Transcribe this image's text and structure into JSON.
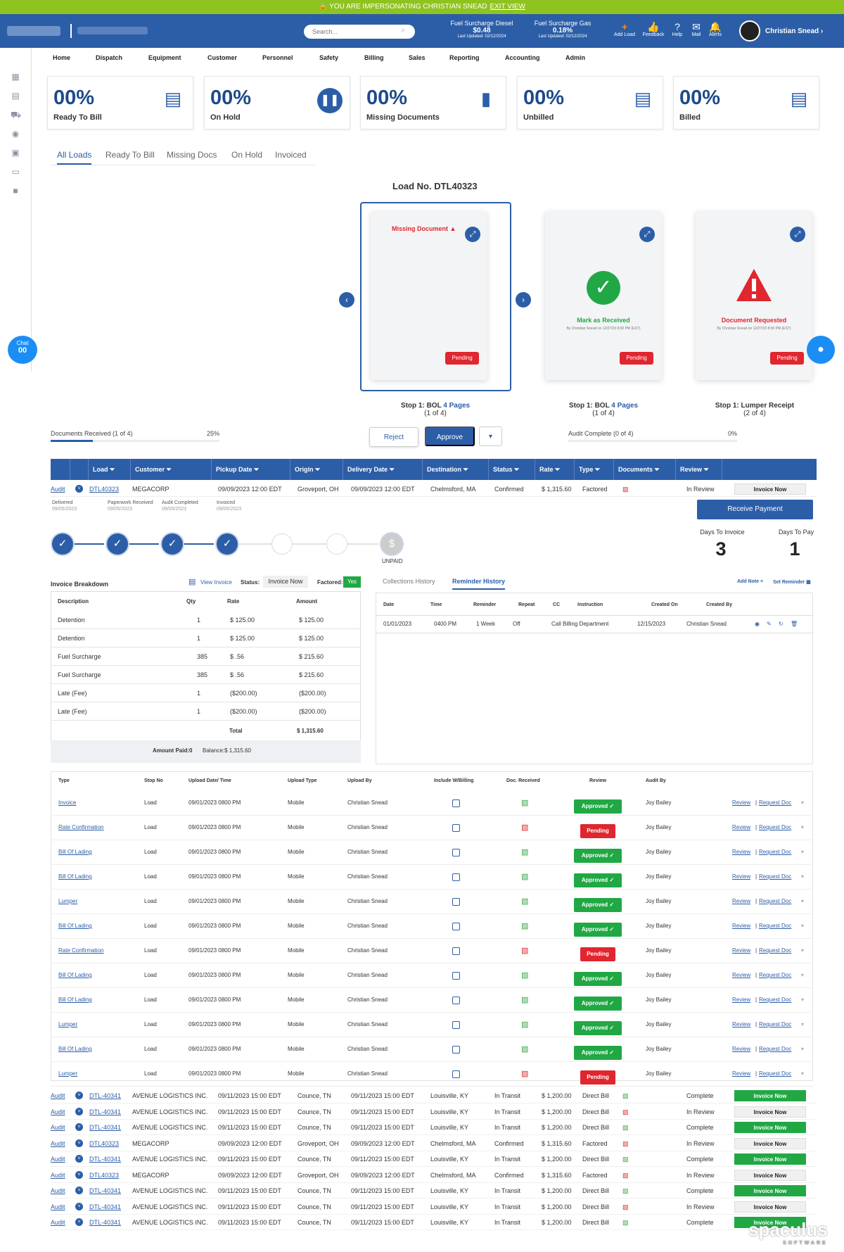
{
  "impersonation": {
    "text": "🔒 YOU ARE IMPERSONATING CHRISTIAN SNEAD",
    "exit": "EXIT VIEW"
  },
  "header": {
    "search_placeholder": "Search...",
    "fuel": [
      {
        "label": "Fuel Surcharge Diesel",
        "value": "$0.48",
        "updated": "Last Updated: 02/12/2024"
      },
      {
        "label": "Fuel Surcharge Gas",
        "value": "0.18%",
        "updated": "Last Updated: 02/12/2024"
      }
    ],
    "icons": [
      {
        "label": "Add Load",
        "icon": "+"
      },
      {
        "label": "Feedback",
        "icon": "👍"
      },
      {
        "label": "Help",
        "icon": "?"
      },
      {
        "label": "Mail",
        "icon": "✉"
      },
      {
        "label": "Alerts",
        "icon": "🔔"
      }
    ],
    "user": "Christian Snead ›"
  },
  "nav": [
    "Home",
    "Dispatch",
    "Equipment",
    "Customer",
    "Personnel",
    "Safety",
    "Billing",
    "Sales",
    "Reporting",
    "Accounting",
    "Admin"
  ],
  "kpis": [
    {
      "value": "00%",
      "label": "Ready To Bill"
    },
    {
      "value": "00%",
      "label": "On Hold"
    },
    {
      "value": "00%",
      "label": "Missing Documents"
    },
    {
      "value": "00%",
      "label": "Unbilled"
    },
    {
      "value": "00%",
      "label": "Billed"
    }
  ],
  "tabs": [
    "All Loads",
    "Ready To Bill",
    "Missing Docs",
    "On Hold",
    "Invoiced"
  ],
  "viewer": {
    "title": "Load No. DTL40323",
    "cards": [
      {
        "status_text": "Missing Document ▲",
        "badge": "Pending"
      },
      {
        "status_text": "Mark as Received",
        "sub": "By Christian Snead on 12/27/23 8:00 PM (EST)",
        "badge": "Pending"
      },
      {
        "status_text": "Document Requested",
        "sub": "By Christian Snead on 12/27/23 8:00 PM (EST)",
        "badge": "Pending"
      }
    ],
    "stops": [
      {
        "name": "Stop 1: BOL",
        "pages": "4 Pages",
        "count": "(1 of 4)"
      },
      {
        "name": "Stop 1: BOL",
        "pages": "4 Pages",
        "count": "(1 of 4)"
      },
      {
        "name": "Stop 1: Lumper Receipt",
        "pages": "",
        "count": "(2 of 4)"
      }
    ],
    "docs_received": {
      "label": "Documents Received (1 of 4)",
      "percent": "25%",
      "fraction": 0.25
    },
    "audit": {
      "label": "Audit Complete (0 of 4)",
      "percent": "0%",
      "fraction": 0
    },
    "reject": "Reject",
    "approve": "Approve",
    "dropdown": "▾"
  },
  "table": {
    "headers": [
      "Load",
      "Customer",
      "Pickup Date",
      "Origin",
      "Delivery Date",
      "Destination",
      "Status",
      "Rate",
      "Type",
      "Documents",
      "Review"
    ],
    "first_row": {
      "audit": "Audit",
      "load": "DTL40323",
      "customer": "MEGACORP",
      "pickup": "09/09/2023 12:00 EDT",
      "origin": "Groveport, OH",
      "delivery": "09/09/2023 12:00 EDT",
      "dest": "Chelmsford, MA",
      "status": "Confirmed",
      "rate": "$ 1,315.60",
      "type": "Factored",
      "review": "In Review",
      "action": "Invoice Now"
    },
    "milestones": [
      {
        "label": "Delivered",
        "date": "09/05/2023"
      },
      {
        "label": "Paperwork Received",
        "date": "09/05/2023"
      },
      {
        "label": "Audit Completed",
        "date": "09/05/2023"
      },
      {
        "label": "Invoiced",
        "date": "09/05/2023"
      }
    ],
    "receive_payment": "Receive Payment",
    "days_to_invoice": {
      "label": "Days To Invoice",
      "value": "3"
    },
    "days_to_pay": {
      "label": "Days To Pay",
      "value": "1"
    },
    "unpaid": "UNPAID",
    "rows": [
      {
        "load": "DTL-40341",
        "customer": "AVENUE LOGISTICS INC.",
        "pickup": "09/11/2023 15:00 EDT",
        "origin": "Counce, TN",
        "delivery": "09/11/2023 15:00 EDT",
        "dest": "Louisville, KY",
        "status": "In Transit",
        "rate": "$ 1,200.00",
        "type": "Direct Bill",
        "doc": "g",
        "review": "Complete",
        "action": "Invoice Now",
        "green": true
      },
      {
        "load": "DTL-40341",
        "customer": "AVENUE LOGISTICS INC.",
        "pickup": "09/11/2023 15:00 EDT",
        "origin": "Counce, TN",
        "delivery": "09/11/2023 15:00 EDT",
        "dest": "Louisville, KY",
        "status": "In Transit",
        "rate": "$ 1,200.00",
        "type": "Direct Bill",
        "doc": "r",
        "review": "In Review",
        "action": "Invoice Now",
        "green": false
      },
      {
        "load": "DTL-40341",
        "customer": "AVENUE LOGISTICS INC.",
        "pickup": "09/11/2023 15:00 EDT",
        "origin": "Counce, TN",
        "delivery": "09/11/2023 15:00 EDT",
        "dest": "Louisville, KY",
        "status": "In Transit",
        "rate": "$ 1,200.00",
        "type": "Direct Bill",
        "doc": "g",
        "review": "Complete",
        "action": "Invoice Now",
        "green": true
      },
      {
        "load": "DTL40323",
        "customer": "MEGACORP",
        "pickup": "09/09/2023 12:00 EDT",
        "origin": "Groveport, OH",
        "delivery": "09/09/2023 12:00 EDT",
        "dest": "Chelmsford, MA",
        "status": "Confirmed",
        "rate": "$ 1,315.60",
        "type": "Factored",
        "doc": "r",
        "review": "In Review",
        "action": "Invoice Now",
        "green": false
      },
      {
        "load": "DTL-40341",
        "customer": "AVENUE LOGISTICS INC.",
        "pickup": "09/11/2023 15:00 EDT",
        "origin": "Counce, TN",
        "delivery": "09/11/2023 15:00 EDT",
        "dest": "Louisville, KY",
        "status": "In Transit",
        "rate": "$ 1,200.00",
        "type": "Direct Bill",
        "doc": "g",
        "review": "Complete",
        "action": "Invoice Now",
        "green": true
      },
      {
        "load": "DTL40323",
        "customer": "MEGACORP",
        "pickup": "09/09/2023 12:00 EDT",
        "origin": "Groveport, OH",
        "delivery": "09/09/2023 12:00 EDT",
        "dest": "Chelmsford, MA",
        "status": "Confirmed",
        "rate": "$ 1,315.60",
        "type": "Factored",
        "doc": "r",
        "review": "In Review",
        "action": "Invoice Now",
        "green": false
      },
      {
        "load": "DTL-40341",
        "customer": "AVENUE LOGISTICS INC.",
        "pickup": "09/11/2023 15:00 EDT",
        "origin": "Counce, TN",
        "delivery": "09/11/2023 15:00 EDT",
        "dest": "Louisville, KY",
        "status": "In Transit",
        "rate": "$ 1,200.00",
        "type": "Direct Bill",
        "doc": "g",
        "review": "Complete",
        "action": "Invoice Now",
        "green": true
      },
      {
        "load": "DTL-40341",
        "customer": "AVENUE LOGISTICS INC.",
        "pickup": "09/11/2023 15:00 EDT",
        "origin": "Counce, TN",
        "delivery": "09/11/2023 15:00 EDT",
        "dest": "Louisville, KY",
        "status": "In Transit",
        "rate": "$ 1,200.00",
        "type": "Direct Bill",
        "doc": "r",
        "review": "In Review",
        "action": "Invoice Now",
        "green": false
      },
      {
        "load": "DTL-40341",
        "customer": "AVENUE LOGISTICS INC.",
        "pickup": "09/11/2023 15:00 EDT",
        "origin": "Counce, TN",
        "delivery": "09/11/2023 15:00 EDT",
        "dest": "Louisville, KY",
        "status": "In Transit",
        "rate": "$ 1,200.00",
        "type": "Direct Bill",
        "doc": "g",
        "review": "Complete",
        "action": "Invoice Now",
        "green": true
      }
    ]
  },
  "invoice": {
    "title": "Invoice Breakdown",
    "view": "View Invoice",
    "status_label": "Status:",
    "status_value": "Invoice Now",
    "factored_label": "Factored:",
    "factored_value": "Yes",
    "headers": [
      "Description",
      "Qty",
      "Rate",
      "Amount"
    ],
    "lines": [
      {
        "d": "Detention",
        "q": "1",
        "r": "$ 125.00",
        "a": "$ 125.00"
      },
      {
        "d": "Detention",
        "q": "1",
        "r": "$ 125.00",
        "a": "$ 125.00"
      },
      {
        "d": "Fuel Surcharge",
        "q": "385",
        "r": "$ .56",
        "a": "$ 215.60"
      },
      {
        "d": "Fuel Surcharge",
        "q": "385",
        "r": "$ .56",
        "a": "$ 215.60"
      },
      {
        "d": "Late (Fee)",
        "q": "1",
        "r": "($200.00)",
        "a": "($200.00)"
      },
      {
        "d": "Late (Fee)",
        "q": "1",
        "r": "($200.00)",
        "a": "($200.00)"
      }
    ],
    "total_label": "Total",
    "total": "$ 1,315.60",
    "paid": "Amount Paid:0",
    "balance": "Balance:$ 1,315.60"
  },
  "reminders": {
    "tabs": [
      "Collections History",
      "Reminder History"
    ],
    "add_note": "Add Note +",
    "set_reminder": "Set Reminder",
    "headers": [
      "Date",
      "Time",
      "Reminder",
      "Repeat",
      "CC",
      "Instruction",
      "Created On",
      "Created By"
    ],
    "row": [
      "01/01/2023",
      "0400 PM",
      "1 Week",
      "Off",
      "",
      "Call Billing Department",
      "12/15/2023",
      "Christian Snead"
    ]
  },
  "documents": {
    "headers": [
      "Type",
      "Stop No",
      "Upload Date/ Time",
      "Upload Type",
      "Upload By",
      "Include W/Billing",
      "Doc. Received",
      "Review",
      "Audit By"
    ],
    "rows": [
      {
        "type": "Invoice",
        "ok": true
      },
      {
        "type": "Rate Confirmation",
        "ok": false
      },
      {
        "type": "Bill Of Lading",
        "ok": true
      },
      {
        "type": "Bill Of Lading",
        "ok": true
      },
      {
        "type": "Lumper",
        "ok": true
      },
      {
        "type": "Bill Of Lading",
        "ok": true
      },
      {
        "type": "Rate Confirmation",
        "ok": false
      },
      {
        "type": "Bill Of Lading",
        "ok": true
      },
      {
        "type": "Bill Of Lading",
        "ok": true
      },
      {
        "type": "Lumper",
        "ok": true
      },
      {
        "type": "Bill Of Lading",
        "ok": true
      },
      {
        "type": "Lumper",
        "ok": false
      }
    ],
    "stop": "Load",
    "date": "09/01/2023 0800 PM",
    "upload_type": "Mobile",
    "by": "Christian Snead",
    "audit_by": "Joy Bailey",
    "approved": "Approved ✓",
    "pending": "Pending",
    "review": "Review",
    "request": "Request Doc"
  },
  "chat": {
    "label": "Chat",
    "count": "00"
  },
  "watermark": {
    "name": "spaculus",
    "sub": "SOFTWARE"
  }
}
